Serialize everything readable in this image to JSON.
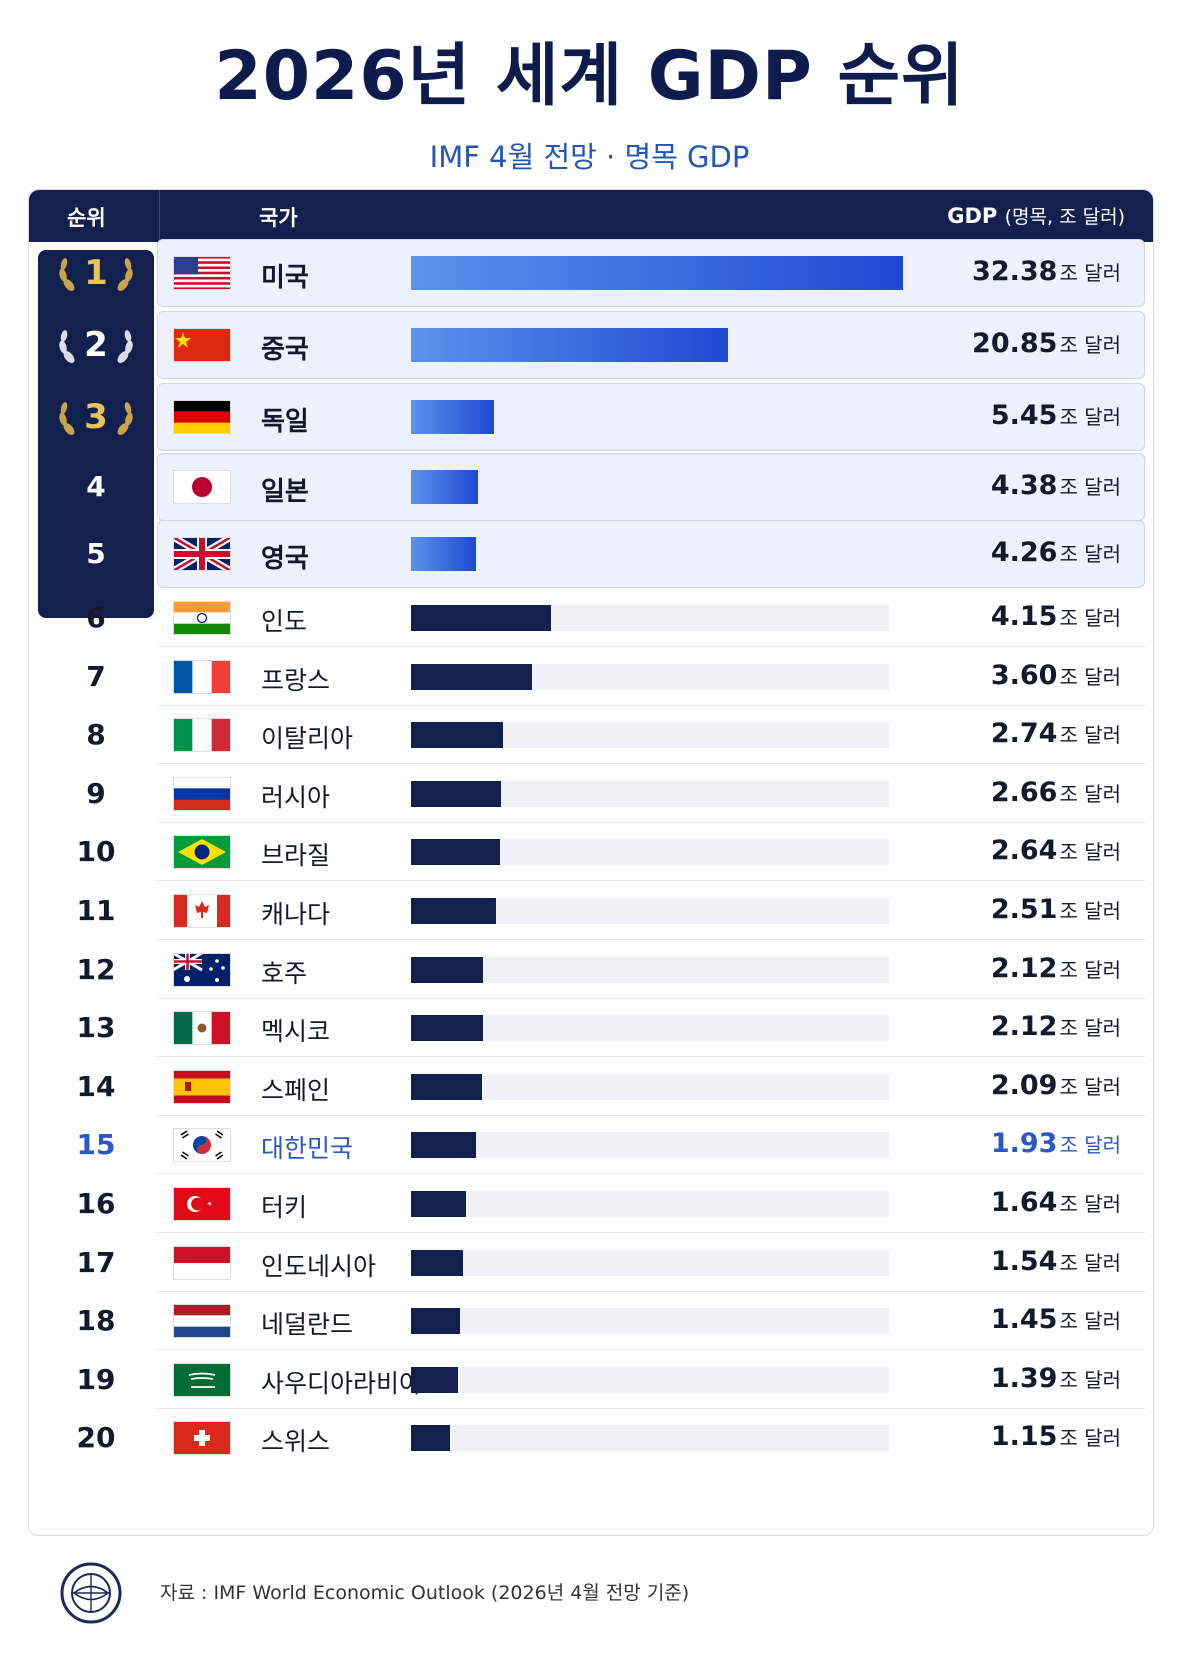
{
  "header": {
    "title": "2026년 세계 GDP 순위",
    "subtitle": "IMF 4월 전망 · 명목 GDP"
  },
  "table_header": {
    "rank": "순위",
    "country": "국가",
    "gdp": "GDP",
    "gdp_note": "(명목, 조 달러)"
  },
  "unit": "조 달러",
  "rows": [
    {
      "rank": "1",
      "country": "미국",
      "value": "32.38"
    },
    {
      "rank": "2",
      "country": "중국",
      "value": "20.85"
    },
    {
      "rank": "3",
      "country": "독일",
      "value": "5.45"
    },
    {
      "rank": "4",
      "country": "일본",
      "value": "4.38"
    },
    {
      "rank": "5",
      "country": "영국",
      "value": "4.26"
    },
    {
      "rank": "6",
      "country": "인도",
      "value": "4.15"
    },
    {
      "rank": "7",
      "country": "프랑스",
      "value": "3.60"
    },
    {
      "rank": "8",
      "country": "이탈리아",
      "value": "2.74"
    },
    {
      "rank": "9",
      "country": "러시아",
      "value": "2.66"
    },
    {
      "rank": "10",
      "country": "브라질",
      "value": "2.64"
    },
    {
      "rank": "11",
      "country": "캐나다",
      "value": "2.51"
    },
    {
      "rank": "12",
      "country": "호주",
      "value": "2.12"
    },
    {
      "rank": "13",
      "country": "멕시코",
      "value": "2.12"
    },
    {
      "rank": "14",
      "country": "스페인",
      "value": "2.09"
    },
    {
      "rank": "15",
      "country": "대한민국",
      "value": "1.93"
    },
    {
      "rank": "16",
      "country": "터키",
      "value": "1.64"
    },
    {
      "rank": "17",
      "country": "인도네시아",
      "value": "1.54"
    },
    {
      "rank": "18",
      "country": "네덜란드",
      "value": "1.45"
    },
    {
      "rank": "19",
      "country": "사우디아라비아",
      "value": "1.39"
    },
    {
      "rank": "20",
      "country": "스위스",
      "value": "1.15"
    }
  ],
  "chart_data": {
    "type": "bar",
    "orientation": "horizontal",
    "title": "2026년 세계 GDP 순위",
    "subtitle": "IMF 4월 전망 · 명목 GDP",
    "categories": [
      "미국",
      "중국",
      "독일",
      "일본",
      "영국",
      "인도",
      "프랑스",
      "이탈리아",
      "러시아",
      "브라질",
      "캐나다",
      "호주",
      "멕시코",
      "스페인",
      "대한민국",
      "터키",
      "인도네시아",
      "네덜란드",
      "사우디아라비아",
      "스위스"
    ],
    "values": [
      32.38,
      20.85,
      5.45,
      4.38,
      4.26,
      4.15,
      3.6,
      2.74,
      2.66,
      2.64,
      2.51,
      2.12,
      2.12,
      2.09,
      1.93,
      1.64,
      1.54,
      1.45,
      1.39,
      1.15
    ],
    "xlabel": "GDP (명목, 조 달러)",
    "ylabel": "",
    "highlight": "대한민국",
    "colors": {
      "top5_start": "#5c93ec",
      "top5_end": "#1e49d2",
      "others": "#12204d",
      "highlight_text": "#2a58c6",
      "header_bg": "#12204d",
      "medal_gold": "#c9a24a",
      "medal_silver": "#d9dde6"
    }
  },
  "icons": {
    "flags": [
      "us-flag-icon",
      "china-flag-icon",
      "germany-flag-icon",
      "japan-flag-icon",
      "uk-flag-icon",
      "india-flag-icon",
      "france-flag-icon",
      "italy-flag-icon",
      "russia-flag-icon",
      "brazil-flag-icon",
      "canada-flag-icon",
      "australia-flag-icon",
      "mexico-flag-icon",
      "spain-flag-icon",
      "korea-flag-icon",
      "turkey-flag-icon",
      "indonesia-flag-icon",
      "netherlands-flag-icon",
      "saudi-arabia-flag-icon",
      "switzerland-flag-icon"
    ],
    "medals": [
      "gold-laurel-icon",
      "silver-laurel-icon",
      "bronze-laurel-icon"
    ],
    "footer_logo": "imf-seal-icon"
  },
  "footer": {
    "source": "자료 : IMF World Economic Outlook (2026년 4월 전망 기준)"
  }
}
